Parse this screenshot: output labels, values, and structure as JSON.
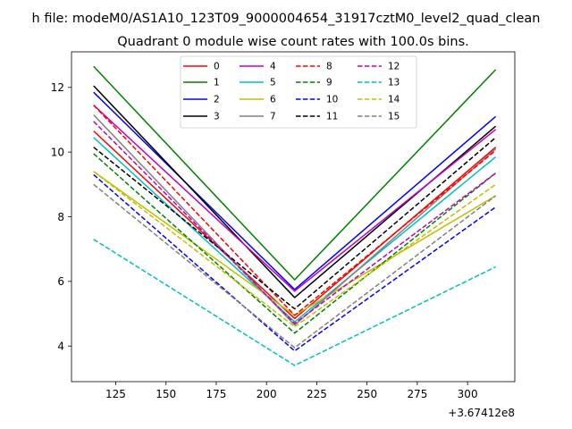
{
  "figure": {
    "suptitle": "h file: modeM0/AS1A10_123T09_9000004654_31917cztM0_level2_quad_clean"
  },
  "chart_data": {
    "type": "line",
    "title": "Quadrant 0 module wise count rates with 100.0s bins.",
    "xlabel": "",
    "ylabel": "",
    "x_offset_label": "+3.67412e8",
    "xlim": [
      103,
      323.5
    ],
    "ylim": [
      2.9,
      13.1
    ],
    "xticks": [
      125,
      150,
      175,
      200,
      225,
      250,
      275,
      300
    ],
    "yticks": [
      4,
      6,
      8,
      10,
      12
    ],
    "x": [
      114,
      214,
      314
    ],
    "legend_position": "top-center",
    "grid": false,
    "series": [
      {
        "name": "0",
        "color": "#ff0000",
        "dash": "solid",
        "values": [
          10.65,
          4.85,
          10.15
        ]
      },
      {
        "name": "1",
        "color": "#008000",
        "dash": "solid",
        "values": [
          12.65,
          6.05,
          12.55
        ]
      },
      {
        "name": "2",
        "color": "#0000ff",
        "dash": "solid",
        "values": [
          11.85,
          5.75,
          11.1
        ]
      },
      {
        "name": "3",
        "color": "#000000",
        "dash": "solid",
        "values": [
          12.05,
          5.5,
          10.8
        ]
      },
      {
        "name": "4",
        "color": "#bf00bf",
        "dash": "solid",
        "values": [
          11.45,
          5.7,
          10.7
        ]
      },
      {
        "name": "5",
        "color": "#00bfbf",
        "dash": "solid",
        "values": [
          10.45,
          4.75,
          9.85
        ]
      },
      {
        "name": "6",
        "color": "#bfbf00",
        "dash": "solid",
        "values": [
          9.4,
          4.95,
          8.65
        ]
      },
      {
        "name": "7",
        "color": "#808080",
        "dash": "solid",
        "values": [
          11.15,
          4.65,
          10.1
        ]
      },
      {
        "name": "8",
        "color": "#ff0000",
        "dash": "dashed",
        "values": [
          11.45,
          4.95,
          10.05
        ]
      },
      {
        "name": "9",
        "color": "#008000",
        "dash": "dashed",
        "values": [
          9.95,
          4.4,
          9.35
        ]
      },
      {
        "name": "10",
        "color": "#0000ff",
        "dash": "dashed",
        "values": [
          9.3,
          3.85,
          8.3
        ]
      },
      {
        "name": "11",
        "color": "#000000",
        "dash": "dashed",
        "values": [
          10.15,
          5.15,
          10.45
        ]
      },
      {
        "name": "12",
        "color": "#bf00bf",
        "dash": "dashed",
        "values": [
          10.95,
          4.7,
          9.35
        ]
      },
      {
        "name": "13",
        "color": "#00bfbf",
        "dash": "dashed",
        "values": [
          7.3,
          3.4,
          6.45
        ]
      },
      {
        "name": "14",
        "color": "#bfbf00",
        "dash": "dashed",
        "values": [
          9.4,
          4.6,
          9.0
        ]
      },
      {
        "name": "15",
        "color": "#808080",
        "dash": "dashed",
        "values": [
          9.0,
          3.95,
          8.65
        ]
      }
    ]
  }
}
